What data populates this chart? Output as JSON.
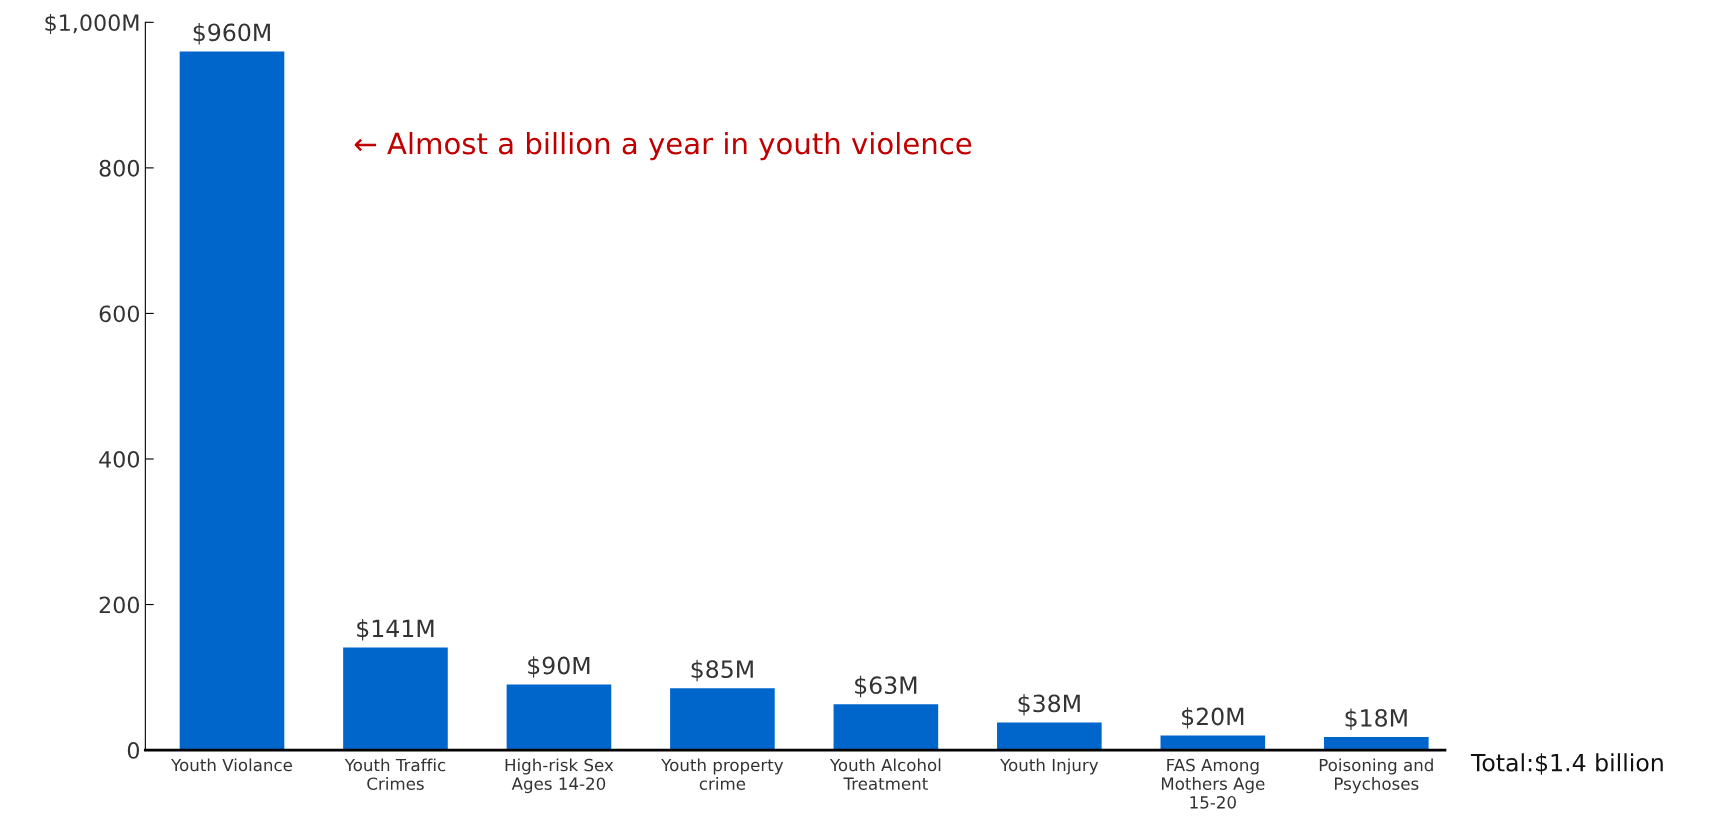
{
  "chart_data": {
    "type": "bar",
    "categories": [
      "Youth Violance",
      "Youth Traffic\nCrimes",
      "High-risk Sex\nAges 14-20",
      "Youth property\ncrime",
      "Youth Alcohol\nTreatment",
      "Youth Injury",
      "FAS Among\nMothers Age\n15-20",
      "Poisoning and\nPsychoses"
    ],
    "values": [
      960,
      141,
      90,
      85,
      63,
      38,
      20,
      18
    ],
    "value_labels": [
      "$960M",
      "$141M",
      "$90M",
      "$85M",
      "$63M",
      "$38M",
      "$20M",
      "$18M"
    ],
    "color": "#0066cc",
    "ylim": [
      0,
      1000
    ],
    "yticks": [
      0,
      200,
      400,
      600,
      800,
      {
        "value": 1000,
        "label": "$1,000M"
      }
    ],
    "grid": false,
    "annotations": [
      "← Almost a billion a year in youth violence",
      "Total:$1.4 billion"
    ]
  }
}
